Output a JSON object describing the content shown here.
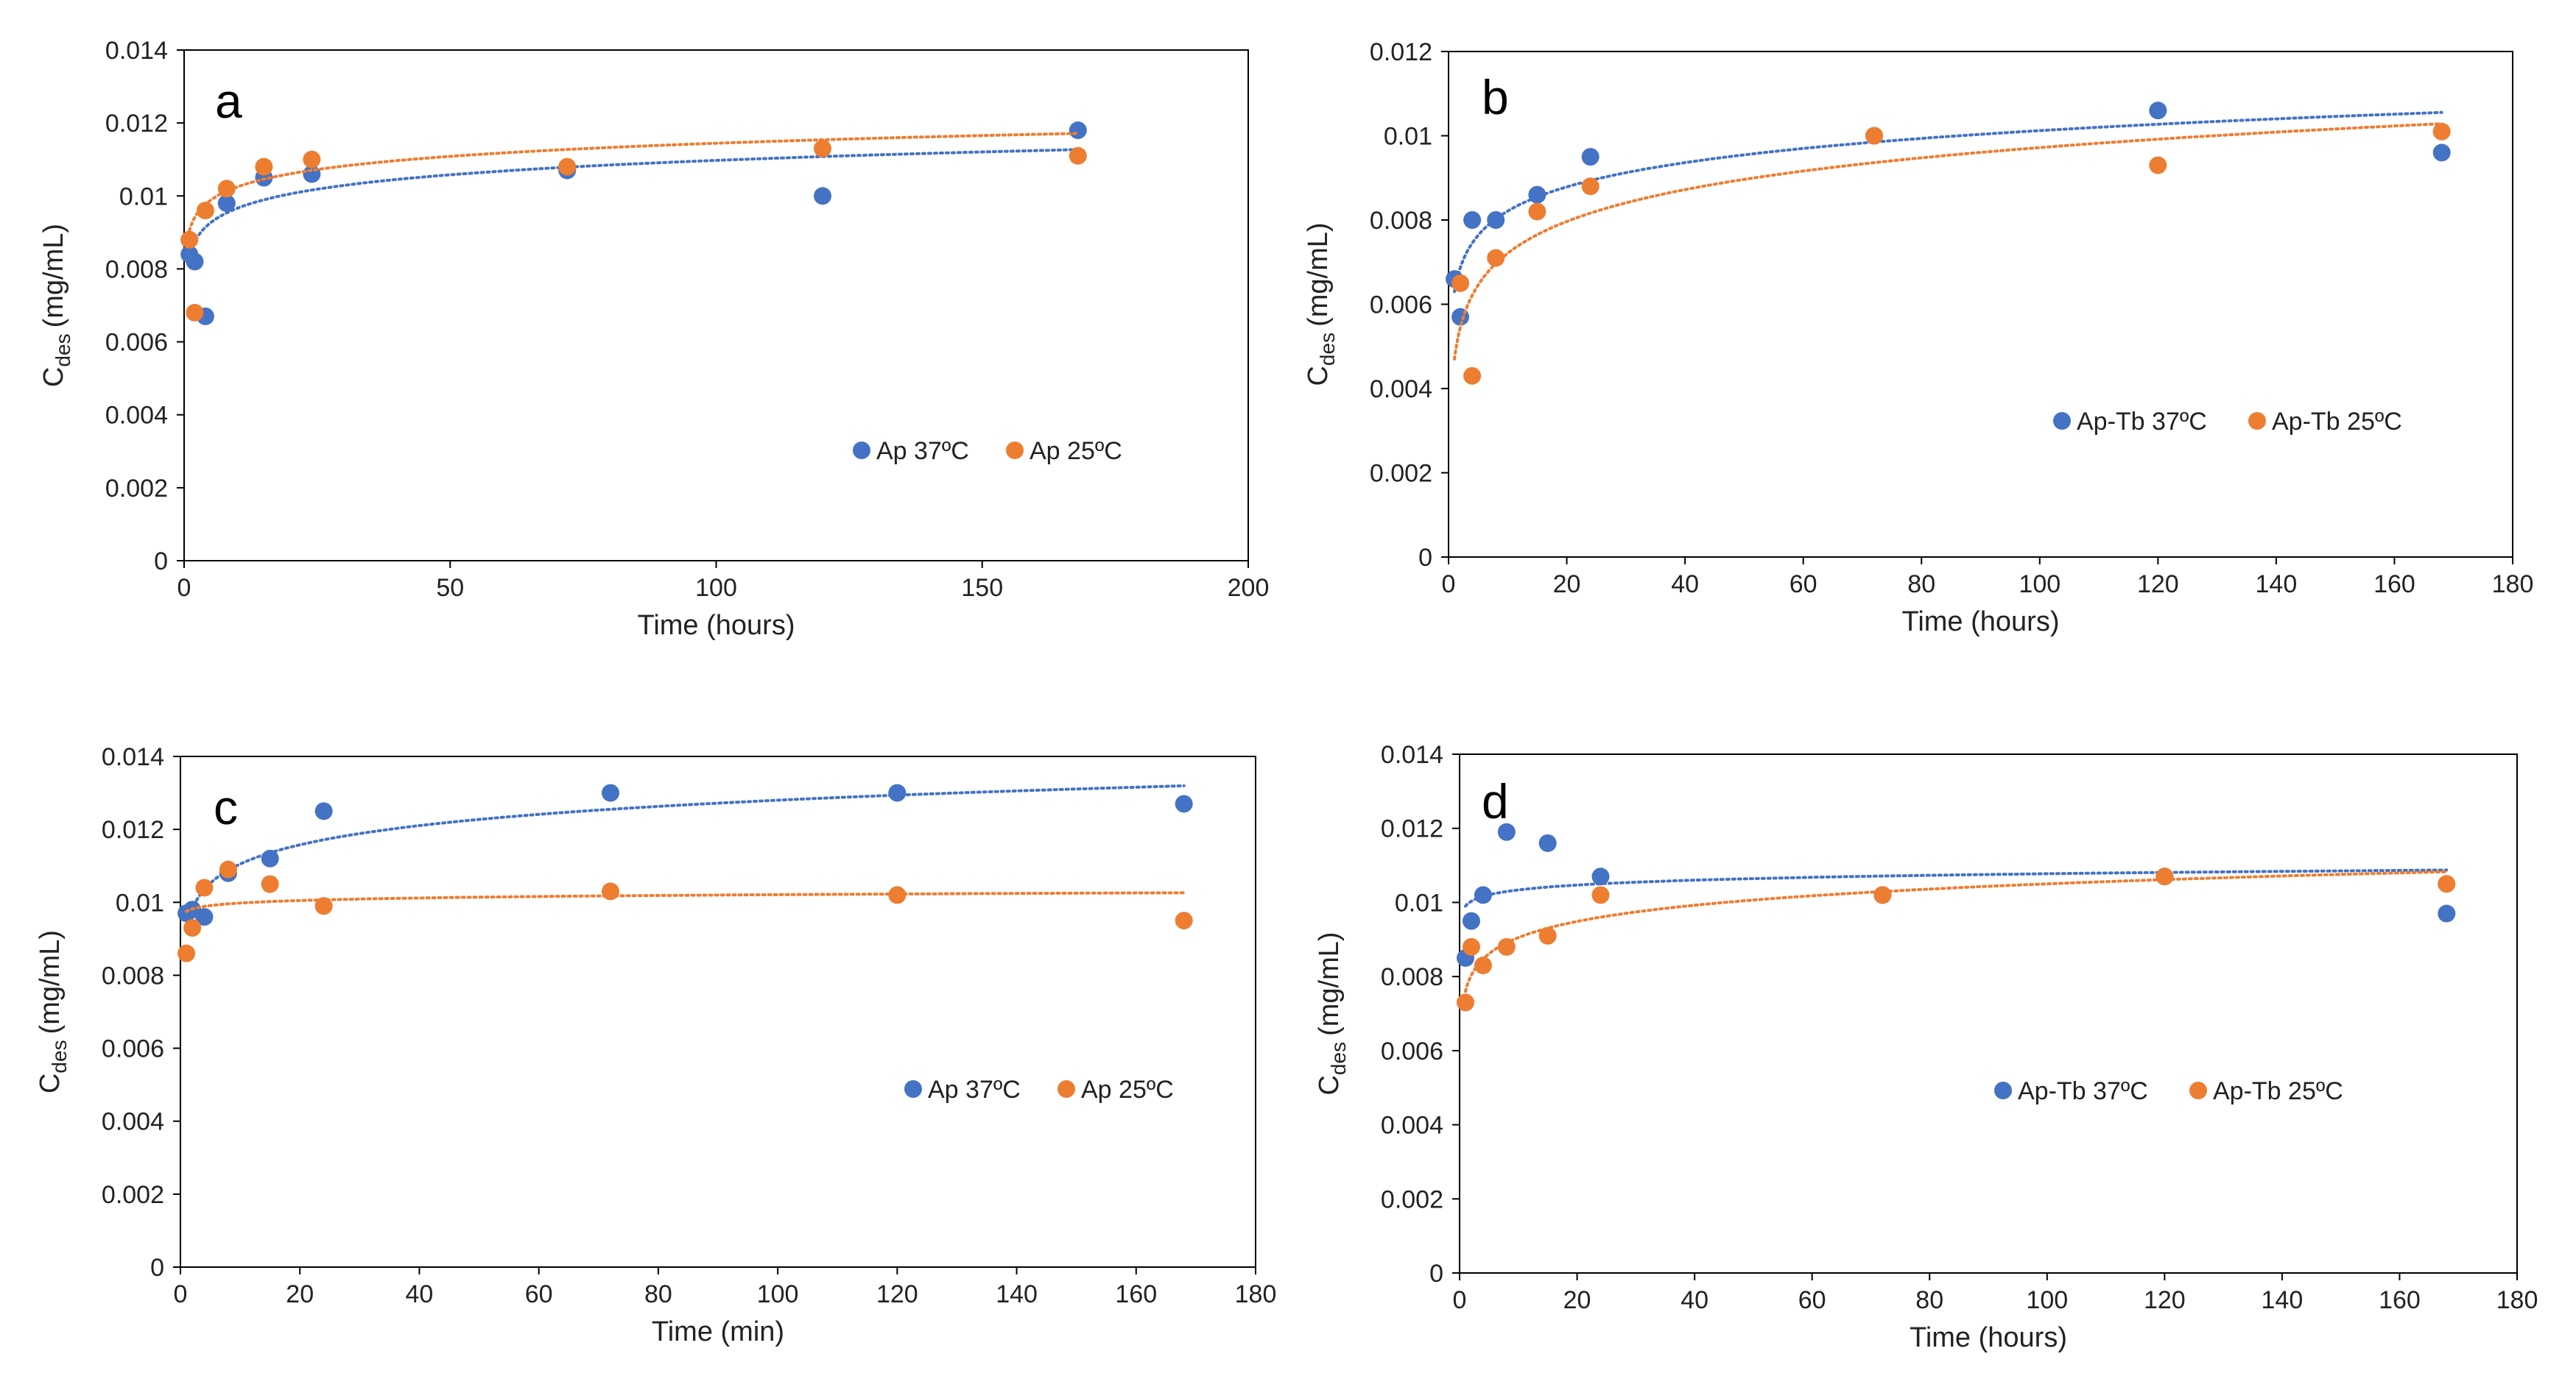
{
  "colors": {
    "series_37": "#4472C4",
    "series_25": "#ED7D31",
    "axis": "#000000",
    "background": "#ffffff"
  },
  "chart_data": [
    {
      "panel": "a",
      "type": "scatter",
      "xlabel": "Time (hours)",
      "ylabel_main": "C",
      "ylabel_sub": "des",
      "ylabel_unit": "(mg/mL)",
      "xlim": [
        0,
        200
      ],
      "ylim": [
        0,
        0.014
      ],
      "xticks": [
        "0",
        "50",
        "100",
        "150",
        "200"
      ],
      "yticks": [
        "0",
        "0.002",
        "0.004",
        "0.006",
        "0.008",
        "0.01",
        "0.012",
        "0.014"
      ],
      "series": [
        {
          "name": "Ap 37ºC",
          "color": "#4472C4",
          "x": [
            1,
            2,
            4,
            8,
            15,
            24,
            72,
            120,
            168
          ],
          "y": [
            0.0084,
            0.0082,
            0.0067,
            0.0098,
            0.0105,
            0.0106,
            0.0107,
            0.01,
            0.0118
          ],
          "trend": {
            "a": 0.00835,
            "b": 0.00057
          }
        },
        {
          "name": "Ap 25ºC",
          "color": "#ED7D31",
          "x": [
            1,
            2,
            4,
            8,
            15,
            24,
            72,
            120,
            168
          ],
          "y": [
            0.0088,
            0.0068,
            0.0096,
            0.0102,
            0.0108,
            0.011,
            0.0108,
            0.0113,
            0.0111
          ],
          "trend": {
            "a": 0.00905,
            "b": 0.00052
          }
        }
      ]
    },
    {
      "panel": "b",
      "type": "scatter",
      "xlabel": "Time (hours)",
      "ylabel_main": "C",
      "ylabel_sub": "des",
      "ylabel_unit": "(mg/mL)",
      "xlim": [
        0,
        180
      ],
      "ylim": [
        0,
        0.012
      ],
      "xticks": [
        "0",
        "20",
        "40",
        "60",
        "80",
        "100",
        "120",
        "140",
        "160",
        "180"
      ],
      "yticks": [
        "0",
        "0.002",
        "0.004",
        "0.006",
        "0.008",
        "0.01",
        "0.012"
      ],
      "series": [
        {
          "name": "Ap-Tb 37ºC",
          "color": "#4472C4",
          "x": [
            1,
            2,
            4,
            8,
            15,
            24,
            72,
            120,
            168
          ],
          "y": [
            0.0066,
            0.0057,
            0.008,
            0.008,
            0.0086,
            0.0095,
            0.01,
            0.0106,
            0.0096
          ],
          "trend": {
            "a": 0.0063,
            "b": 0.00083
          }
        },
        {
          "name": "Ap-Tb 25ºC",
          "color": "#ED7D31",
          "x": [
            2,
            4,
            8,
            15,
            24,
            72,
            120,
            168
          ],
          "y": [
            0.0065,
            0.0043,
            0.0071,
            0.0082,
            0.0088,
            0.01,
            0.0093,
            0.0101
          ],
          "trend": {
            "a": 0.0047,
            "b": 0.00109
          }
        }
      ]
    },
    {
      "panel": "c",
      "type": "scatter",
      "xlabel": "Time (min)",
      "ylabel_main": "C",
      "ylabel_sub": "des",
      "ylabel_unit": "(mg/mL)",
      "xlim": [
        0,
        180
      ],
      "ylim": [
        0,
        0.014
      ],
      "xticks": [
        "0",
        "20",
        "40",
        "60",
        "80",
        "100",
        "120",
        "140",
        "160",
        "180"
      ],
      "yticks": [
        "0",
        "0.002",
        "0.004",
        "0.006",
        "0.008",
        "0.01",
        "0.012",
        "0.014"
      ],
      "series": [
        {
          "name": "Ap 37ºC",
          "color": "#4472C4",
          "x": [
            1,
            2,
            4,
            8,
            15,
            24,
            72,
            120,
            168
          ],
          "y": [
            0.0097,
            0.0098,
            0.0096,
            0.0108,
            0.0112,
            0.0125,
            0.013,
            0.013,
            0.0127
          ],
          "trend": {
            "a": 0.0093,
            "b": 0.00076
          }
        },
        {
          "name": "Ap 25ºC",
          "color": "#ED7D31",
          "x": [
            1,
            2,
            4,
            8,
            15,
            24,
            72,
            120,
            168
          ],
          "y": [
            0.0086,
            0.0093,
            0.0104,
            0.0109,
            0.0105,
            0.0099,
            0.0103,
            0.0102,
            0.0095
          ],
          "trend": {
            "a": 0.00975,
            "b": 0.0001
          }
        }
      ]
    },
    {
      "panel": "d",
      "type": "scatter",
      "xlabel": "Time (hours)",
      "ylabel_main": "C",
      "ylabel_sub": "des",
      "ylabel_unit": "(mg/mL)",
      "xlim": [
        0,
        180
      ],
      "ylim": [
        0,
        0.014
      ],
      "xticks": [
        "0",
        "20",
        "40",
        "60",
        "80",
        "100",
        "120",
        "140",
        "160",
        "180"
      ],
      "yticks": [
        "0",
        "0.002",
        "0.004",
        "0.006",
        "0.008",
        "0.01",
        "0.012",
        "0.014"
      ],
      "series": [
        {
          "name": "Ap-Tb 37ºC",
          "color": "#4472C4",
          "x": [
            1,
            2,
            4,
            8,
            15,
            24,
            72,
            120,
            168
          ],
          "y": [
            0.0085,
            0.0095,
            0.0102,
            0.0119,
            0.0116,
            0.0107,
            0.0102,
            0.0107,
            0.0097
          ],
          "trend": {
            "a": 0.0099,
            "b": 0.00019
          }
        },
        {
          "name": "Ap-Tb 25ºC",
          "color": "#ED7D31",
          "x": [
            1,
            2,
            4,
            8,
            15,
            24,
            72,
            120,
            168
          ],
          "y": [
            0.0073,
            0.0088,
            0.0083,
            0.0088,
            0.0091,
            0.0102,
            0.0102,
            0.0107,
            0.0105
          ],
          "trend": {
            "a": 0.0076,
            "b": 0.00063
          }
        }
      ]
    }
  ]
}
